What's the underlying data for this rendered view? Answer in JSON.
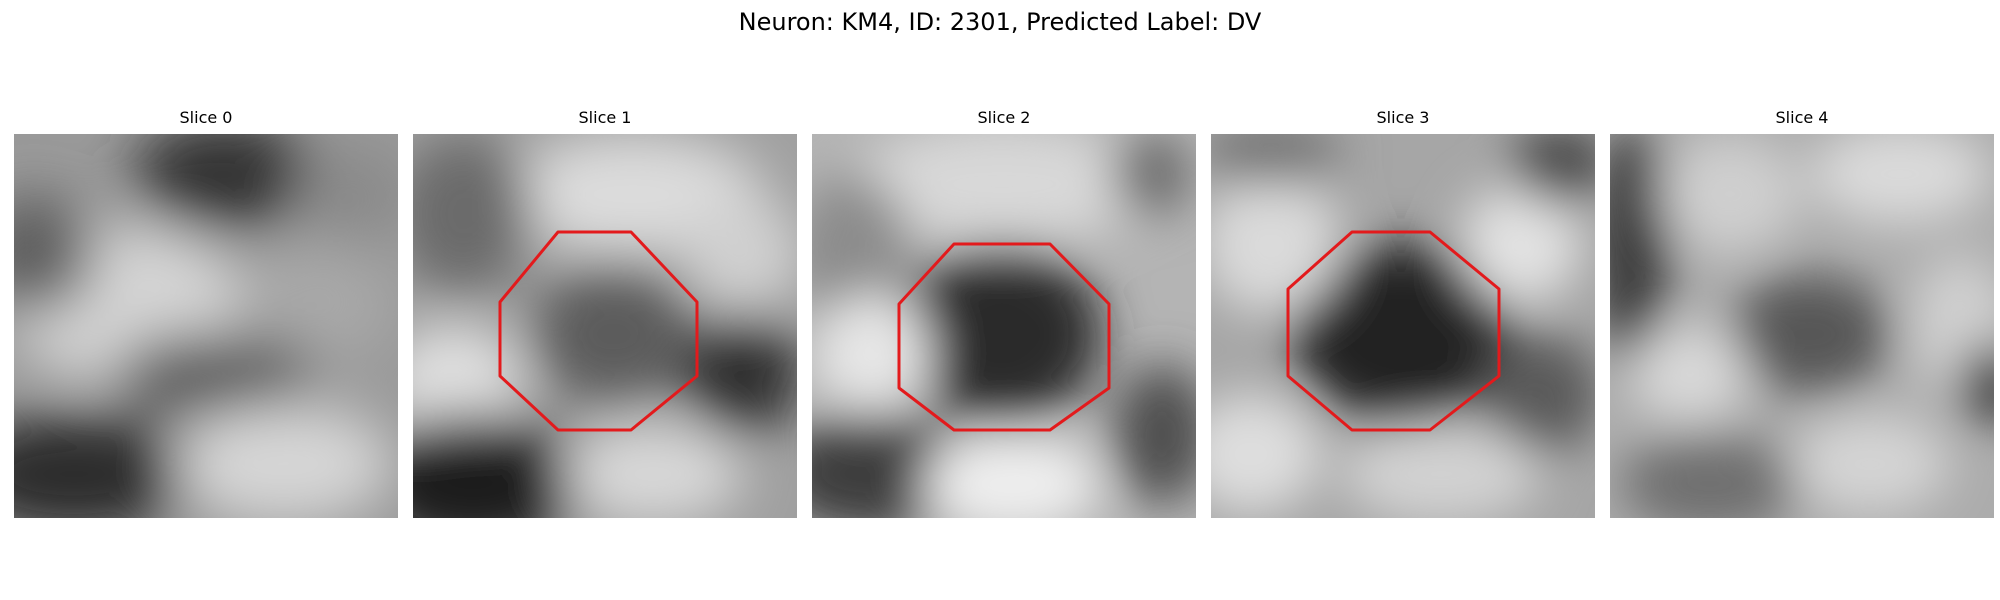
{
  "figure": {
    "title": "Neuron: KM4, ID: 2301, Predicted Label: DV"
  },
  "outline_color": "#e31a1c",
  "panels": [
    {
      "title": "Slice 0",
      "outlined": false
    },
    {
      "title": "Slice 1",
      "outlined": true
    },
    {
      "title": "Slice 2",
      "outlined": true
    },
    {
      "title": "Slice 3",
      "outlined": true
    },
    {
      "title": "Slice 4",
      "outlined": false
    }
  ]
}
